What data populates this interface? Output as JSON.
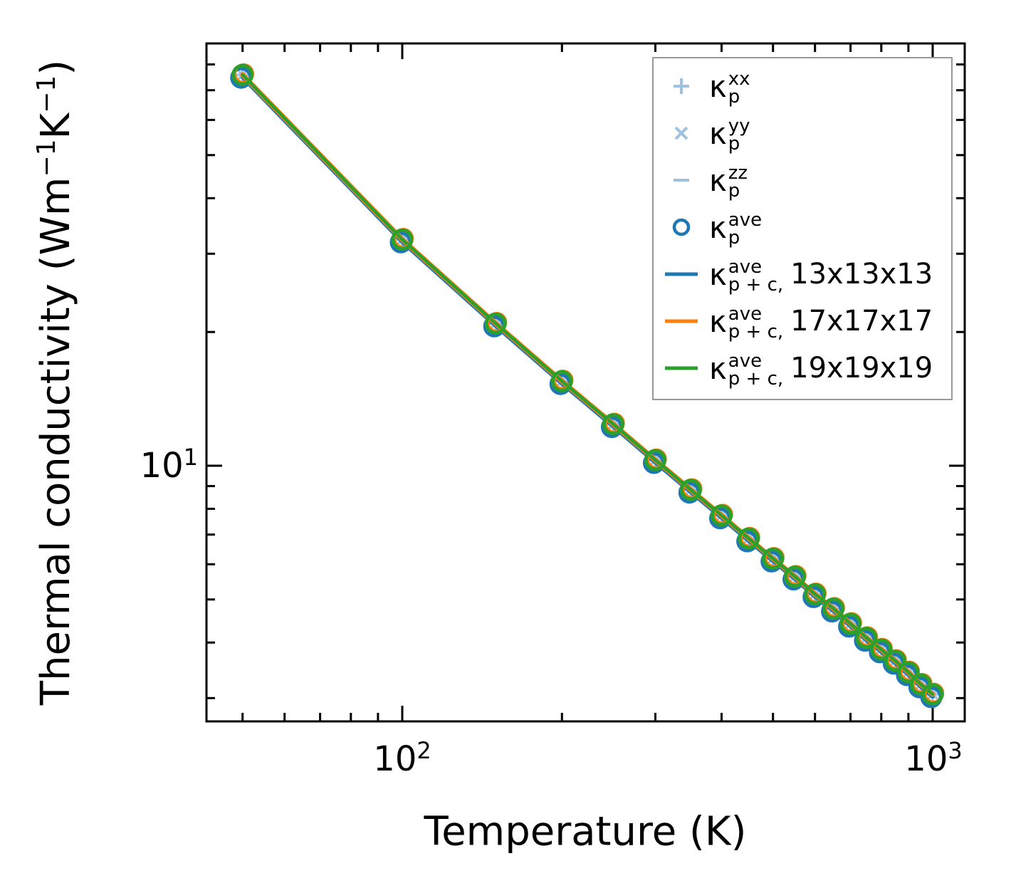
{
  "figure": {
    "background": "#ffffff",
    "axes_color": "#000000"
  },
  "labels": {
    "x_label": "Temperature (K)",
    "y_label_prefix": "Thermal conductivity (Wm",
    "y_label_sup1": "−1",
    "y_label_mid": "K",
    "y_label_sup2": "−1",
    "y_label_suffix": ")",
    "y_tick_base": "10",
    "y_tick_exp": "1",
    "x_tick1_base": "10",
    "x_tick1_exp": "2",
    "x_tick2_base": "10",
    "x_tick2_exp": "3"
  },
  "legend": {
    "border_color": "#999999",
    "entries": [
      {
        "label_text": "κ_p^xx",
        "kappa": "κ",
        "sup": "xx",
        "sub": "p",
        "rest": "",
        "marker": "plus",
        "color": "#9ec2e0"
      },
      {
        "label_text": "κ_p^yy",
        "kappa": "κ",
        "sup": "yy",
        "sub": "p",
        "rest": "",
        "marker": "cross",
        "color": "#9ec2e0"
      },
      {
        "label_text": "κ_p^zz",
        "kappa": "κ",
        "sup": "zz",
        "sub": "p",
        "rest": "",
        "marker": "hline",
        "color": "#9ec2e0"
      },
      {
        "label_text": "κ_p^ave",
        "kappa": "κ",
        "sup": "ave",
        "sub": "p",
        "rest": "",
        "marker": "circle",
        "color": "#1f77b4"
      },
      {
        "label_text": "κ_p+c^ave, 13x13x13",
        "kappa": "κ",
        "sup": "ave",
        "sub": "p + c,",
        "rest": "13x13x13",
        "marker": "line",
        "color": "#1f77b4"
      },
      {
        "label_text": "κ_p+c^ave, 17x17x17",
        "kappa": "κ",
        "sup": "ave",
        "sub": "p + c,",
        "rest": "17x17x17",
        "marker": "line",
        "color": "#ff7f0e"
      },
      {
        "label_text": "κ_p+c^ave, 19x19x19",
        "kappa": "κ",
        "sup": "ave",
        "sub": "p + c,",
        "rest": "19x19x19",
        "marker": "line",
        "color": "#2ca02c"
      }
    ]
  },
  "chart_data": {
    "type": "line",
    "log_x": true,
    "log_y": true,
    "title": "",
    "xlabel": "Temperature (K)",
    "ylabel": "Thermal conductivity (Wm−1K−1)",
    "xlim": [
      42.7,
      1150
    ],
    "ylim": [
      2.66,
      89
    ],
    "x_major_ticks": [
      100,
      1000
    ],
    "y_major_ticks": [
      10
    ],
    "grid": false,
    "legend_position": "upper right",
    "x": [
      50,
      100,
      150,
      200,
      250,
      300,
      350,
      400,
      450,
      500,
      550,
      600,
      650,
      700,
      750,
      800,
      850,
      900,
      950,
      1000
    ],
    "scatter_series": [
      {
        "name": "κ_p^xx",
        "marker": "plus",
        "color": "#9ec2e0",
        "values": [
          75.8,
          32.3,
          20.9,
          15.5,
          12.4,
          10.3,
          8.83,
          7.73,
          6.86,
          6.18,
          5.63,
          5.14,
          4.77,
          4.41,
          4.1,
          3.86,
          3.64,
          3.43,
          3.22,
          3.06
        ]
      },
      {
        "name": "κ_p^yy",
        "marker": "cross",
        "color": "#9ec2e0",
        "values": [
          75.8,
          32.3,
          20.9,
          15.5,
          12.4,
          10.3,
          8.83,
          7.73,
          6.86,
          6.18,
          5.63,
          5.14,
          4.77,
          4.41,
          4.1,
          3.86,
          3.64,
          3.43,
          3.22,
          3.06
        ]
      },
      {
        "name": "κ_p^zz",
        "marker": "hline",
        "color": "#9ec2e0",
        "values": [
          75.8,
          32.3,
          20.9,
          15.5,
          12.4,
          10.3,
          8.83,
          7.73,
          6.86,
          6.18,
          5.63,
          5.14,
          4.77,
          4.41,
          4.1,
          3.86,
          3.64,
          3.43,
          3.22,
          3.06
        ]
      },
      {
        "name": "κ_p^ave",
        "marker": "circle",
        "color": "#1f77b4",
        "values": [
          75.8,
          32.3,
          20.9,
          15.5,
          12.4,
          10.3,
          8.83,
          7.73,
          6.86,
          6.18,
          5.63,
          5.14,
          4.77,
          4.41,
          4.1,
          3.86,
          3.64,
          3.43,
          3.22,
          3.06
        ]
      }
    ],
    "series": [
      {
        "name": "κ_p+c^ave, 13x13x13",
        "color": "#1f77b4",
        "values": [
          75.8,
          32.3,
          20.9,
          15.5,
          12.4,
          10.3,
          8.83,
          7.73,
          6.86,
          6.18,
          5.63,
          5.14,
          4.77,
          4.41,
          4.1,
          3.86,
          3.64,
          3.43,
          3.22,
          3.06
        ]
      },
      {
        "name": "κ_p+c^ave, 17x17x17",
        "color": "#ff7f0e",
        "values": [
          75.8,
          32.3,
          20.9,
          15.5,
          12.4,
          10.3,
          8.83,
          7.73,
          6.86,
          6.18,
          5.63,
          5.14,
          4.77,
          4.41,
          4.1,
          3.86,
          3.64,
          3.43,
          3.22,
          3.06
        ]
      },
      {
        "name": "κ_p+c^ave, 19x19x19",
        "color": "#2ca02c",
        "values": [
          75.8,
          32.3,
          20.9,
          15.5,
          12.4,
          10.3,
          8.83,
          7.73,
          6.86,
          6.18,
          5.63,
          5.14,
          4.77,
          4.41,
          4.1,
          3.86,
          3.64,
          3.43,
          3.22,
          3.06
        ]
      }
    ]
  }
}
